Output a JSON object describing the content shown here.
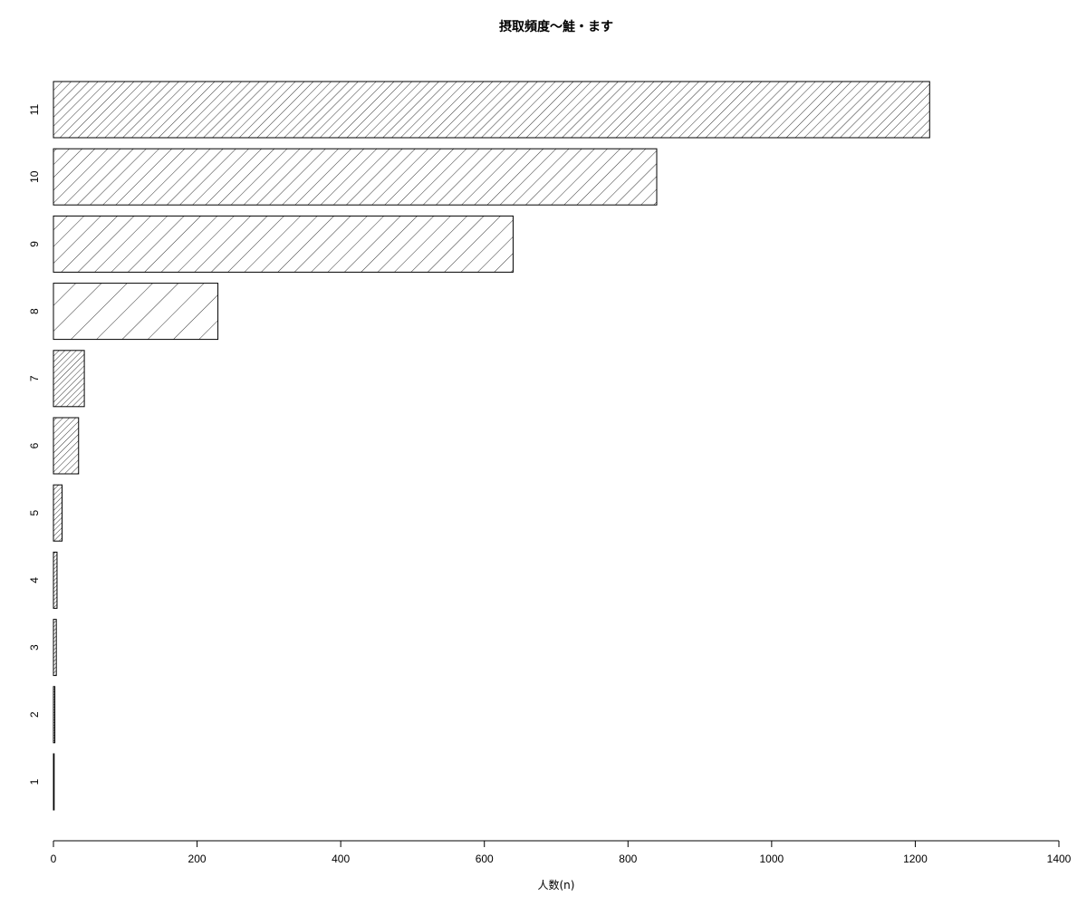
{
  "chart_data": {
    "type": "bar",
    "orientation": "horizontal",
    "title": "摂取頻度〜鮭・ます",
    "xlabel": "人数(n)",
    "ylabel": "",
    "categories": [
      "1",
      "2",
      "3",
      "4",
      "5",
      "6",
      "7",
      "8",
      "9",
      "10",
      "11"
    ],
    "values": [
      1,
      2,
      4,
      5,
      12,
      35,
      43,
      229,
      640,
      840,
      1220
    ],
    "xlim": [
      0,
      1400
    ],
    "xticks": [
      0,
      200,
      400,
      600,
      800,
      1000,
      1200,
      1400
    ],
    "grid": false,
    "legend": "none",
    "bar_fill": "hatched",
    "colors": {
      "stroke": "#000000",
      "background": "#ffffff"
    }
  }
}
